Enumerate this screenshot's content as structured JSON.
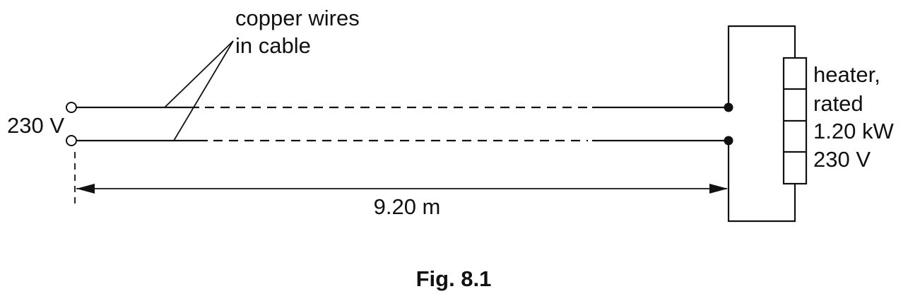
{
  "labels": {
    "copper_line1": "copper wires",
    "copper_line2": "in cable",
    "supply_voltage": "230 V",
    "length": "9.20 m",
    "heater_line1": "heater,",
    "heater_line2": "rated",
    "heater_line3": "1.20 kW",
    "heater_line4": "230 V"
  },
  "caption": "Fig. 8.1"
}
